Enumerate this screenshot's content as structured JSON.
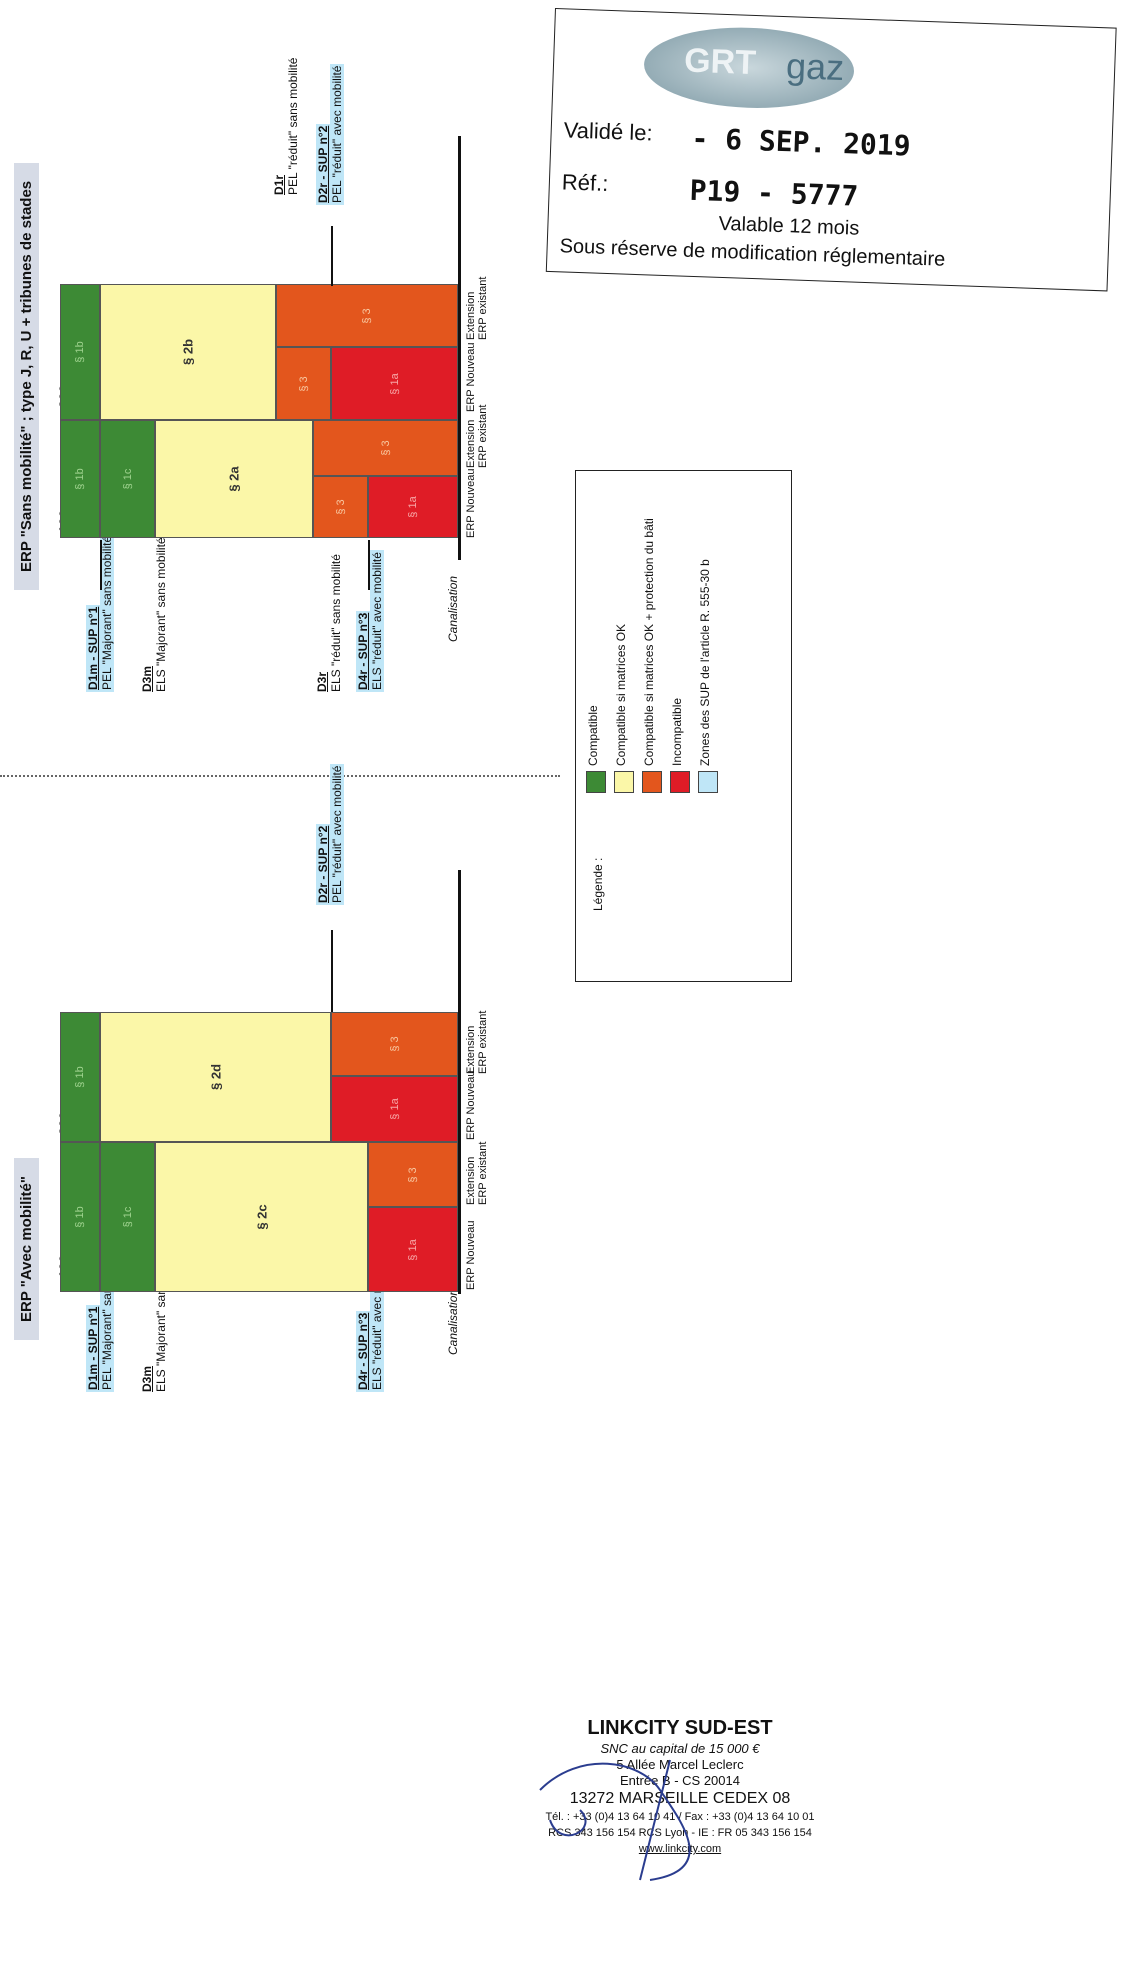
{
  "top_section": {
    "title": "ERP \"Sans mobilité\" ; type J, R, U + tribunes de stades",
    "pers_100": "100 pers.",
    "pers_300": "300 pers.",
    "labels": {
      "d1m_code": "D1m - SUP n°1",
      "d1m_desc": "PEL \"Majorant\" sans mobilité",
      "d3m_code": "D3m",
      "d3m_desc": "ELS \"Majorant\" sans mobilité",
      "d3r_code": "D3r",
      "d3r_desc": "ELS \"réduit\" sans mobilité",
      "d4r_code": "D4r - SUP n°3",
      "d4r_desc": "ELS \"réduit\" avec mobilité",
      "canal": "Canalisation",
      "d1r_code": "D1r",
      "d1r_desc": "PEL \"réduit\" sans mobilité",
      "d2r_code": "D2r - SUP n°2",
      "d2r_desc": "PEL \"réduit\" avec mobilité"
    },
    "cells": {
      "s1b": "§ 1b",
      "s1c": "§ 1c",
      "s2a": "§ 2a",
      "s2b": "§ 2b",
      "s3": "§ 3",
      "s1a": "§ 1a"
    }
  },
  "bottom_section": {
    "title": "ERP \"Avec mobilité\"",
    "pers_100": "100 pers.",
    "pers_300": "300 pers.",
    "labels": {
      "d1m_code": "D1m - SUP n°1",
      "d1m_desc": "PEL \"Majorant\" sans mobilité",
      "d3m_code": "D3m",
      "d3m_desc": "ELS \"Majorant\" sans mobilité",
      "d4r_code": "D4r - SUP n°3",
      "d4r_desc": "ELS \"réduit\" avec mobilité",
      "canal": "Canalisation",
      "d2r_code": "D2r - SUP n°2",
      "d2r_desc": "PEL \"réduit\" avec mobilité"
    },
    "cells": {
      "s1b": "§ 1b",
      "s1c": "§ 1c",
      "s2c": "§ 2c",
      "s2d": "§ 2d",
      "s3": "§ 3",
      "s1a": "§ 1a"
    }
  },
  "columns": {
    "nouveau": "ERP Nouveau",
    "extension": "Extension ERP existant"
  },
  "legend": {
    "title": "Légende :",
    "items": [
      {
        "label": "Compatible",
        "color": "#3d8a35"
      },
      {
        "label": "Compatible si matrices OK",
        "color": "#fbf7a8"
      },
      {
        "label": "Compatible si matrices OK + protection du bâti",
        "color": "#e3561d"
      },
      {
        "label": "Incompatible",
        "color": "#df1c26"
      },
      {
        "label": "Zones des SUP de l'article R. 555-30 b",
        "color": "#bfe6f7"
      }
    ]
  },
  "stamp": {
    "logo_main": "GRT",
    "logo_sub": "gaz",
    "valide_label": "Validé le:",
    "valide_value": "- 6 SEP. 2019",
    "ref_label": "Réf.:",
    "ref_value": "P19 - 5777",
    "valable": "Valable 12 mois",
    "reserve": "Sous réserve de modification réglementaire"
  },
  "company": {
    "name": "LINKCITY SUD-EST",
    "capital": "SNC au capital de 15 000 €",
    "address1": "5 Allée Marcel Leclerc",
    "address2": "Entrée B - CS 20014",
    "address3": "13272 MARSEILLE CEDEX 08",
    "phone": "Tél. : +33 (0)4 13 64 10 41 / Fax : +33 (0)4 13 64 10 01",
    "rcs": "RCS 343 156 154 RCS Lyon - IE : FR 05 343 156 154",
    "web": "www.linkcity.com"
  }
}
